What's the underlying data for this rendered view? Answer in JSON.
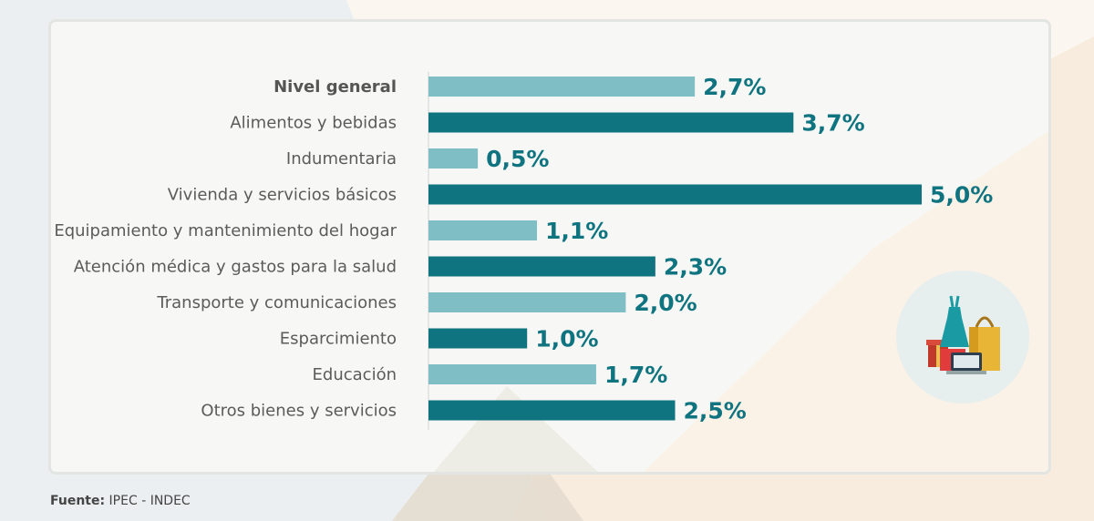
{
  "chart_data": {
    "type": "bar",
    "orientation": "horizontal",
    "categories": [
      "Nivel general",
      "Alimentos y bebidas",
      "Indumentaria",
      "Vivienda y servicios básicos",
      "Equipamiento y mantenimiento del hogar",
      "Atención médica y gastos para la salud",
      "Transporte y comunicaciones",
      "Esparcimiento",
      "Educación",
      "Otros bienes y servicios"
    ],
    "values": [
      2.7,
      3.7,
      0.5,
      5.0,
      1.1,
      2.3,
      2.0,
      1.0,
      1.7,
      2.5
    ],
    "value_labels": [
      "2,7%",
      "3,7%",
      "0,5%",
      "5,0%",
      "1,1%",
      "2,3%",
      "2,0%",
      "1,0%",
      "1,7%",
      "2,5%"
    ],
    "bold_category": "Nivel general",
    "xlim": [
      0,
      5.0
    ],
    "grid": false,
    "colors": {
      "light_bar": "#7fbec4",
      "dark_bar": "#0f7480",
      "value_text": "#0f7480"
    }
  },
  "source": {
    "label": "Fuente:",
    "text": "IPEC - INDEC"
  },
  "illustration": {
    "icon": "shopping-bags-dress-laptop-icon"
  }
}
